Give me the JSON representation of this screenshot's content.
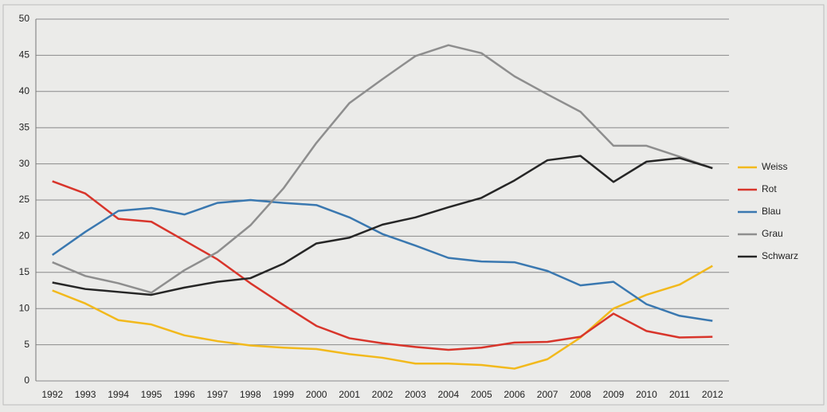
{
  "chart_data": {
    "type": "line",
    "categories": [
      "1992",
      "1993",
      "1994",
      "1995",
      "1996",
      "1997",
      "1998",
      "1999",
      "2000",
      "2001",
      "2002",
      "2003",
      "2004",
      "2005",
      "2006",
      "2007",
      "2008",
      "2009",
      "2010",
      "2011",
      "2012"
    ],
    "series": [
      {
        "name": "Weiss",
        "color": "#f2b91c",
        "values": [
          12.5,
          10.7,
          8.4,
          7.8,
          6.3,
          5.5,
          4.9,
          4.6,
          4.4,
          3.7,
          3.2,
          2.4,
          2.4,
          2.2,
          1.7,
          3.0,
          6.0,
          10.0,
          11.9,
          13.3,
          15.9
        ]
      },
      {
        "name": "Rot",
        "color": "#d8352b",
        "values": [
          27.6,
          25.9,
          22.4,
          22.0,
          19.4,
          16.8,
          13.5,
          10.5,
          7.6,
          5.9,
          5.2,
          4.7,
          4.3,
          4.6,
          5.3,
          5.4,
          6.1,
          9.3,
          6.9,
          6.0,
          6.1
        ]
      },
      {
        "name": "Blau",
        "color": "#3a78b0",
        "values": [
          17.4,
          20.6,
          23.5,
          23.9,
          23.0,
          24.6,
          25.0,
          24.6,
          24.3,
          22.6,
          20.3,
          18.7,
          17.0,
          16.5,
          16.4,
          15.2,
          13.2,
          13.7,
          10.6,
          9.0,
          8.3
        ]
      },
      {
        "name": "Grau",
        "color": "#8e8e8e",
        "values": [
          16.4,
          14.5,
          13.5,
          12.2,
          15.3,
          17.8,
          21.5,
          26.6,
          32.9,
          38.4,
          41.7,
          44.9,
          46.4,
          45.3,
          42.1,
          39.6,
          37.2,
          32.5,
          32.5,
          31.0,
          29.4
        ]
      },
      {
        "name": "Schwarz",
        "color": "#262626",
        "values": [
          13.6,
          12.7,
          12.3,
          11.9,
          12.9,
          13.7,
          14.2,
          16.2,
          19.0,
          19.8,
          21.6,
          22.6,
          24.0,
          25.3,
          27.7,
          30.5,
          31.1,
          27.5,
          30.3,
          30.8,
          29.4
        ]
      }
    ],
    "ylim": [
      0,
      50
    ],
    "yticks": [
      0,
      5,
      10,
      15,
      20,
      25,
      30,
      35,
      40,
      45,
      50
    ],
    "grid": true,
    "legend": "right"
  }
}
